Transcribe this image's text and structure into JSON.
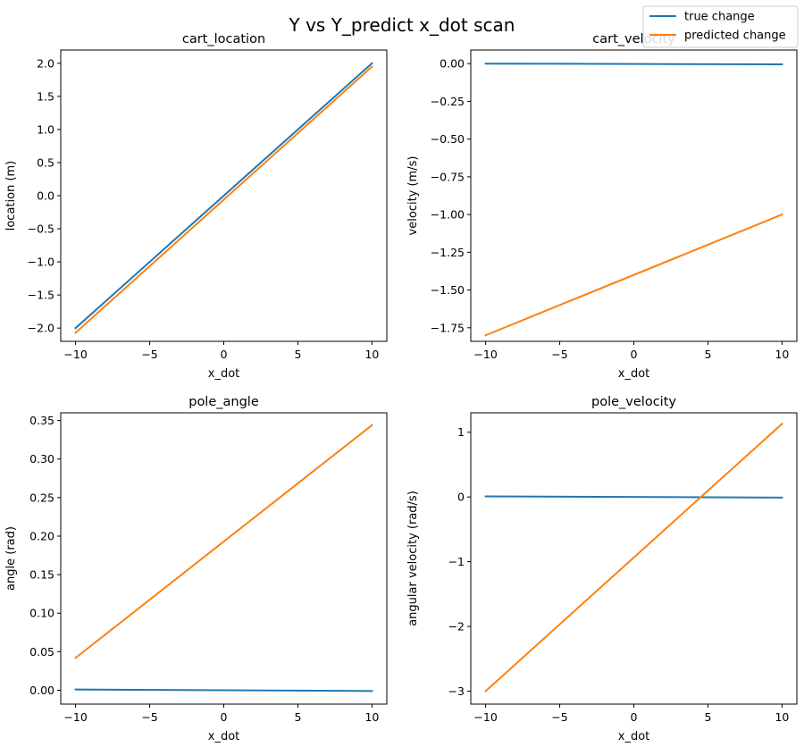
{
  "figure": {
    "title": "Y vs Y_predict x_dot scan"
  },
  "legend": {
    "placement": "top-right",
    "entries": [
      {
        "label": "true change",
        "color": "#1f77b4"
      },
      {
        "label": "predicted change",
        "color": "#ff7f0e"
      }
    ]
  },
  "chart_data": [
    {
      "type": "line",
      "title": "cart_location",
      "xlabel": "x_dot",
      "ylabel": "location (m)",
      "xlim": [
        -11,
        11
      ],
      "ylim": [
        -2.2,
        2.2
      ],
      "xticks": [
        -10,
        -5,
        0,
        5,
        10
      ],
      "xtick_labels": [
        "−10",
        "−5",
        "0",
        "5",
        "10"
      ],
      "yticks": [
        -2.0,
        -1.5,
        -1.0,
        -0.5,
        0.0,
        0.5,
        1.0,
        1.5,
        2.0
      ],
      "ytick_labels": [
        "−2.0",
        "−1.5",
        "−1.0",
        "−0.5",
        "0.0",
        "0.5",
        "1.0",
        "1.5",
        "2.0"
      ],
      "grid": false,
      "series": [
        {
          "name": "true change",
          "color": "#1f77b4",
          "x": [
            -10,
            10
          ],
          "y": [
            -2.0,
            2.0
          ]
        },
        {
          "name": "predicted change",
          "color": "#ff7f0e",
          "x": [
            -10,
            10
          ],
          "y": [
            -2.07,
            1.95
          ]
        }
      ]
    },
    {
      "type": "line",
      "title": "cart_velocity",
      "xlabel": "x_dot",
      "ylabel": "velocity (m/s)",
      "xlim": [
        -11,
        11
      ],
      "ylim": [
        -1.84,
        0.09
      ],
      "xticks": [
        -10,
        -5,
        0,
        5,
        10
      ],
      "xtick_labels": [
        "−10",
        "−5",
        "0",
        "5",
        "10"
      ],
      "yticks": [
        -1.75,
        -1.5,
        -1.25,
        -1.0,
        -0.75,
        -0.5,
        -0.25,
        0.0
      ],
      "ytick_labels": [
        "−1.75",
        "−1.50",
        "−1.25",
        "−1.00",
        "−0.75",
        "−0.50",
        "−0.25",
        "0.00"
      ],
      "grid": false,
      "series": [
        {
          "name": "true change",
          "color": "#1f77b4",
          "x": [
            -10,
            10
          ],
          "y": [
            0.0,
            -0.005
          ]
        },
        {
          "name": "predicted change",
          "color": "#ff7f0e",
          "x": [
            -10,
            10
          ],
          "y": [
            -1.8,
            -1.0
          ]
        }
      ]
    },
    {
      "type": "line",
      "title": "pole_angle",
      "xlabel": "x_dot",
      "ylabel": "angle (rad)",
      "xlim": [
        -11,
        11
      ],
      "ylim": [
        -0.018,
        0.36
      ],
      "xticks": [
        -10,
        -5,
        0,
        5,
        10
      ],
      "xtick_labels": [
        "−10",
        "−5",
        "0",
        "5",
        "10"
      ],
      "yticks": [
        0.0,
        0.05,
        0.1,
        0.15,
        0.2,
        0.25,
        0.3,
        0.35
      ],
      "ytick_labels": [
        "0.00",
        "0.05",
        "0.10",
        "0.15",
        "0.20",
        "0.25",
        "0.30",
        "0.35"
      ],
      "grid": false,
      "series": [
        {
          "name": "true change",
          "color": "#1f77b4",
          "x": [
            -10,
            10
          ],
          "y": [
            0.001,
            -0.001
          ]
        },
        {
          "name": "predicted change",
          "color": "#ff7f0e",
          "x": [
            -10,
            10
          ],
          "y": [
            0.042,
            0.344
          ]
        }
      ]
    },
    {
      "type": "line",
      "title": "pole_velocity",
      "xlabel": "x_dot",
      "ylabel": "angular velocity (rad/s)",
      "xlim": [
        -11,
        11
      ],
      "ylim": [
        -3.2,
        1.3
      ],
      "xticks": [
        -10,
        -5,
        0,
        5,
        10
      ],
      "xtick_labels": [
        "−10",
        "−5",
        "0",
        "5",
        "10"
      ],
      "yticks": [
        -3,
        -2,
        -1,
        0,
        1
      ],
      "ytick_labels": [
        "−3",
        "−2",
        "−1",
        "0",
        "1"
      ],
      "grid": false,
      "series": [
        {
          "name": "true change",
          "color": "#1f77b4",
          "x": [
            -10,
            10
          ],
          "y": [
            0.01,
            -0.01
          ]
        },
        {
          "name": "predicted change",
          "color": "#ff7f0e",
          "x": [
            -10,
            10
          ],
          "y": [
            -3.0,
            1.13
          ]
        }
      ]
    }
  ]
}
